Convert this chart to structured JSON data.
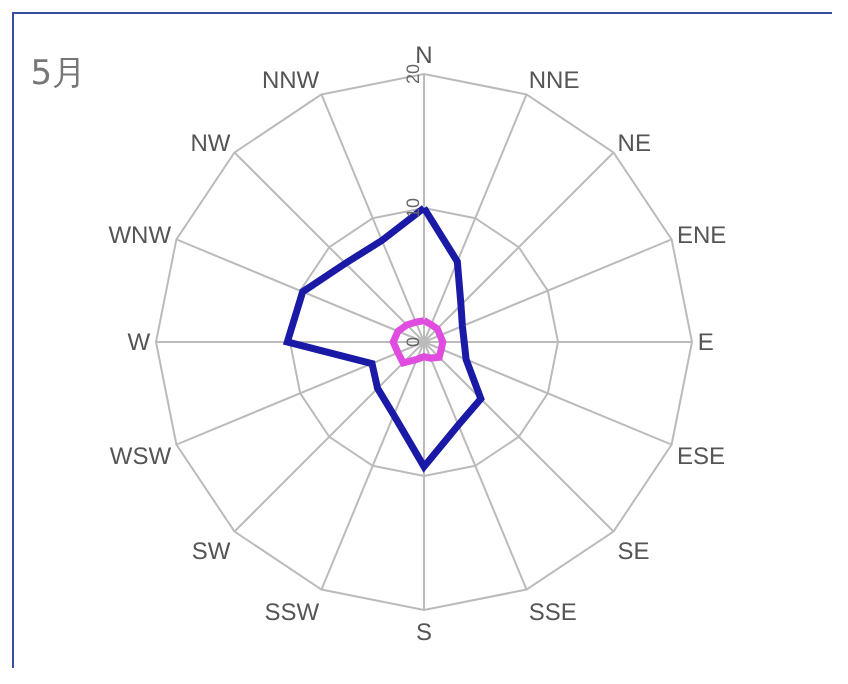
{
  "chart_data": {
    "type": "radar",
    "title": "5月",
    "categories": [
      "N",
      "NNE",
      "NE",
      "ENE",
      "E",
      "ESE",
      "SE",
      "SSE",
      "S",
      "SSW",
      "SW",
      "WSW",
      "W",
      "WNW",
      "NW",
      "NNW"
    ],
    "series": [
      {
        "color": "#1a1aa6",
        "values": [
          10,
          6.5,
          3.9,
          3.1,
          3,
          3.4,
          6,
          6.7,
          9.3,
          5.9,
          4.9,
          4.2,
          10.2,
          9.8,
          8.3,
          8.2
        ]
      },
      {
        "color": "#e04ce0",
        "values": [
          1.6,
          1.4,
          1.4,
          1.3,
          1.4,
          1.4,
          1.6,
          1.3,
          1.1,
          1.4,
          2.2,
          2.1,
          2.3,
          2.1,
          1.8,
          1.6
        ]
      }
    ],
    "ylim": [
      0,
      20
    ],
    "yticks": [
      0,
      10,
      20
    ],
    "grid": true
  }
}
